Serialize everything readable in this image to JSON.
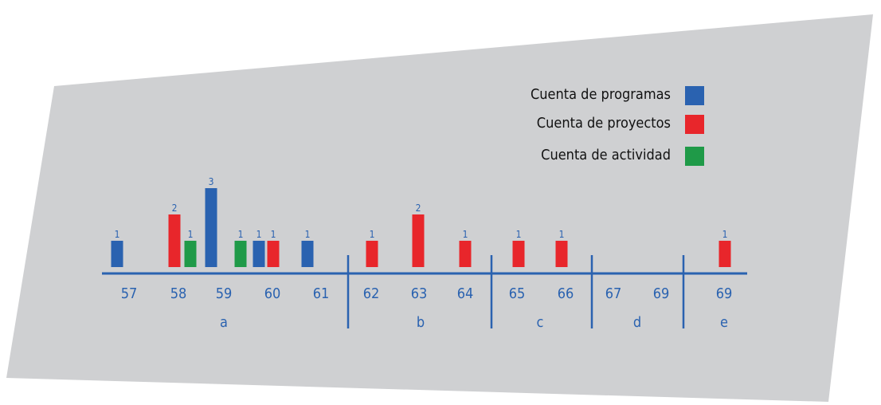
{
  "chart_data": {
    "type": "bar",
    "title": "",
    "xlabel": "",
    "ylabel": "",
    "ylim": [
      0,
      3
    ],
    "grid": false,
    "legend_position": "top-right",
    "colors": {
      "background": "#cfd0d2",
      "axis": "#2a62b0",
      "text": "#2a62b0",
      "legend_text": "#111111"
    },
    "series": [
      {
        "name": "Cuenta de programas",
        "color": "#2a62b0"
      },
      {
        "name": "Cuenta de proyectos",
        "color": "#e8262b"
      },
      {
        "name": "Cuenta de actividad",
        "color": "#1f9a48"
      }
    ],
    "categories": [
      "57",
      "58",
      "59",
      "60",
      "61",
      "62",
      "63",
      "64",
      "65",
      "66",
      "67",
      "69",
      "69"
    ],
    "groups": [
      {
        "label": "a",
        "categories": [
          "57",
          "58",
          "59",
          "60",
          "61"
        ]
      },
      {
        "label": "b",
        "categories": [
          "62",
          "63",
          "64"
        ]
      },
      {
        "label": "c",
        "categories": [
          "65",
          "66"
        ]
      },
      {
        "label": "d",
        "categories": [
          "67",
          "69"
        ]
      },
      {
        "label": "e",
        "categories": [
          "69"
        ]
      }
    ],
    "bars": [
      {
        "series": 0,
        "value": 1
      },
      {
        "series": 1,
        "value": 2
      },
      {
        "series": 2,
        "value": 1
      },
      {
        "series": 0,
        "value": 3
      },
      {
        "series": 2,
        "value": 1
      },
      {
        "series": 0,
        "value": 1
      },
      {
        "series": 1,
        "value": 1
      },
      {
        "series": 0,
        "value": 1
      },
      {
        "series": 1,
        "value": 1
      },
      {
        "series": 1,
        "value": 2
      },
      {
        "series": 1,
        "value": 1
      },
      {
        "series": 1,
        "value": 1
      },
      {
        "series": 1,
        "value": 1
      },
      {
        "series": 1,
        "value": 1
      }
    ]
  }
}
